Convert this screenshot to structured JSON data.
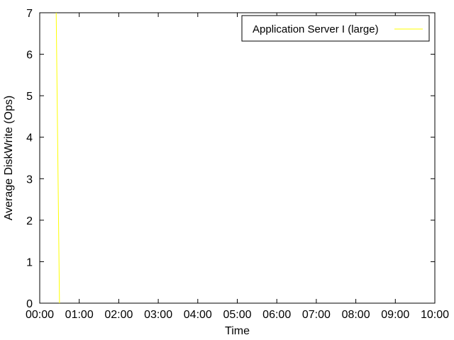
{
  "chart_data": {
    "type": "line",
    "xlabel": "Time",
    "ylabel": "Average DiskWrite (Ops)",
    "x_ticks": [
      "00:00",
      "01:00",
      "02:00",
      "03:00",
      "04:00",
      "05:00",
      "06:00",
      "07:00",
      "08:00",
      "09:00",
      "10:00"
    ],
    "xlim": [
      "00:00",
      "10:00"
    ],
    "ylim": [
      0,
      7
    ],
    "y_ticks": [
      0,
      1,
      2,
      3,
      4,
      5,
      6,
      7
    ],
    "grid": false,
    "legend_position": "top-right",
    "series": [
      {
        "name": "Application Server I (large)",
        "color": "#ffff00",
        "x": [
          "00:25",
          "00:30"
        ],
        "y": [
          7,
          0
        ]
      }
    ]
  }
}
